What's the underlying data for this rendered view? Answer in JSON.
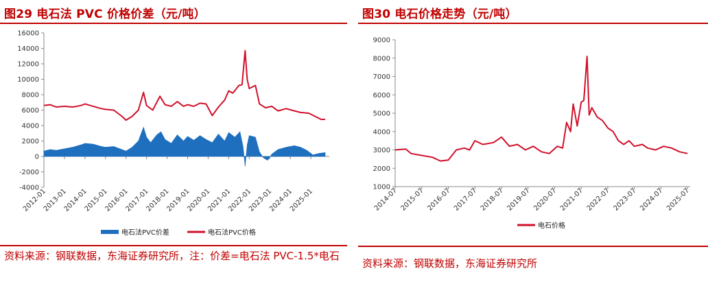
{
  "colors": {
    "accent": "#c00000",
    "price_line": "#d0102a",
    "spread_area": "#1f6fbf"
  },
  "left": {
    "title": "图29  电石法 PVC 价格价差（元/吨）",
    "source": "资料来源：钢联数据，东海证券研究所，注：价差=电石法 PVC-1.5*电石",
    "chart_data": {
      "type": "line",
      "title": "",
      "xlabel": "",
      "ylabel": "",
      "ylim": [
        -4000,
        16000
      ],
      "yticks": [
        "16000",
        "14000",
        "12000",
        "10000",
        "8000",
        "6000",
        "4000",
        "2000",
        "0",
        "-2000",
        "-4000"
      ],
      "x_ticks": [
        "2012-01",
        "2013-01",
        "2014-01",
        "2015-01",
        "2016-01",
        "2017-01",
        "2018-01",
        "2019-01",
        "2020-01",
        "2021-01",
        "2022-01",
        "2023-01",
        "2024-01",
        "2025-01"
      ],
      "xlim": [
        2012.0,
        2025.9
      ],
      "legend_position": "bottom",
      "grid": false,
      "series": [
        {
          "name": "电石法PVC价差",
          "kind": "area",
          "points": [
            [
              2012.0,
              700
            ],
            [
              2012.3,
              900
            ],
            [
              2012.6,
              800
            ],
            [
              2013.0,
              1000
            ],
            [
              2013.4,
              1200
            ],
            [
              2013.8,
              1500
            ],
            [
              2014.0,
              1700
            ],
            [
              2014.4,
              1600
            ],
            [
              2014.8,
              1300
            ],
            [
              2015.0,
              1200
            ],
            [
              2015.4,
              1300
            ],
            [
              2015.8,
              900
            ],
            [
              2016.0,
              700
            ],
            [
              2016.3,
              1200
            ],
            [
              2016.6,
              2000
            ],
            [
              2016.85,
              3800
            ],
            [
              2017.0,
              2500
            ],
            [
              2017.2,
              1800
            ],
            [
              2017.5,
              2800
            ],
            [
              2017.7,
              3200
            ],
            [
              2017.9,
              2200
            ],
            [
              2018.2,
              1700
            ],
            [
              2018.5,
              2800
            ],
            [
              2018.8,
              2000
            ],
            [
              2019.0,
              2600
            ],
            [
              2019.3,
              2100
            ],
            [
              2019.6,
              2700
            ],
            [
              2019.9,
              2200
            ],
            [
              2020.2,
              1800
            ],
            [
              2020.5,
              2900
            ],
            [
              2020.8,
              2000
            ],
            [
              2021.0,
              3100
            ],
            [
              2021.3,
              2500
            ],
            [
              2021.55,
              3200
            ],
            [
              2021.7,
              1300
            ],
            [
              2021.8,
              -1300
            ],
            [
              2021.9,
              1500
            ],
            [
              2022.0,
              2700
            ],
            [
              2022.3,
              2500
            ],
            [
              2022.5,
              600
            ],
            [
              2022.7,
              -200
            ],
            [
              2022.9,
              -500
            ],
            [
              2023.1,
              300
            ],
            [
              2023.4,
              900
            ],
            [
              2023.8,
              1200
            ],
            [
              2024.2,
              1400
            ],
            [
              2024.5,
              1200
            ],
            [
              2024.8,
              800
            ],
            [
              2025.1,
              200
            ],
            [
              2025.4,
              400
            ],
            [
              2025.7,
              500
            ]
          ]
        },
        {
          "name": "电石法PVC价格",
          "kind": "line",
          "points": [
            [
              2012.0,
              6600
            ],
            [
              2012.3,
              6700
            ],
            [
              2012.6,
              6400
            ],
            [
              2013.0,
              6500
            ],
            [
              2013.4,
              6400
            ],
            [
              2013.8,
              6600
            ],
            [
              2014.0,
              6800
            ],
            [
              2014.4,
              6500
            ],
            [
              2014.8,
              6200
            ],
            [
              2015.0,
              6100
            ],
            [
              2015.4,
              6000
            ],
            [
              2015.8,
              5200
            ],
            [
              2016.0,
              4700
            ],
            [
              2016.3,
              5200
            ],
            [
              2016.6,
              6000
            ],
            [
              2016.85,
              8300
            ],
            [
              2017.0,
              6600
            ],
            [
              2017.3,
              6000
            ],
            [
              2017.65,
              7800
            ],
            [
              2017.9,
              6700
            ],
            [
              2018.2,
              6500
            ],
            [
              2018.5,
              7100
            ],
            [
              2018.8,
              6500
            ],
            [
              2019.0,
              6700
            ],
            [
              2019.3,
              6500
            ],
            [
              2019.6,
              6900
            ],
            [
              2019.9,
              6800
            ],
            [
              2020.2,
              5300
            ],
            [
              2020.5,
              6400
            ],
            [
              2020.8,
              7300
            ],
            [
              2021.0,
              8500
            ],
            [
              2021.2,
              8200
            ],
            [
              2021.5,
              9200
            ],
            [
              2021.65,
              9300
            ],
            [
              2021.8,
              13700
            ],
            [
              2021.9,
              10000
            ],
            [
              2022.0,
              8800
            ],
            [
              2022.3,
              9200
            ],
            [
              2022.5,
              6800
            ],
            [
              2022.8,
              6300
            ],
            [
              2023.1,
              6500
            ],
            [
              2023.4,
              5900
            ],
            [
              2023.8,
              6200
            ],
            [
              2024.2,
              5900
            ],
            [
              2024.5,
              5700
            ],
            [
              2024.9,
              5600
            ],
            [
              2025.2,
              5200
            ],
            [
              2025.5,
              4800
            ],
            [
              2025.7,
              4800
            ]
          ]
        }
      ]
    }
  },
  "right": {
    "title": "图30  电石价格走势（元/吨）",
    "source": "资料来源：钢联数据，东海证券研究所",
    "chart_data": {
      "type": "line",
      "title": "",
      "xlabel": "",
      "ylabel": "",
      "ylim": [
        1000,
        9000
      ],
      "yticks": [
        "9000",
        "8000",
        "7000",
        "6000",
        "5000",
        "4000",
        "3000",
        "2000",
        "1000"
      ],
      "x_ticks": [
        "2014-07",
        "2015-07",
        "2016-07",
        "2017-07",
        "2018-07",
        "2019-07",
        "2020-07",
        "2021-07",
        "2022-07",
        "2023-07",
        "2024-07",
        "2025-07"
      ],
      "xlim": [
        2014.5,
        2025.6
      ],
      "legend_position": "bottom",
      "grid": false,
      "series": [
        {
          "name": "电石价格",
          "kind": "line",
          "points": [
            [
              2014.5,
              3000
            ],
            [
              2014.9,
              3050
            ],
            [
              2015.1,
              2800
            ],
            [
              2015.5,
              2700
            ],
            [
              2015.9,
              2600
            ],
            [
              2016.2,
              2400
            ],
            [
              2016.5,
              2450
            ],
            [
              2016.8,
              3000
            ],
            [
              2017.1,
              3100
            ],
            [
              2017.3,
              3000
            ],
            [
              2017.5,
              3500
            ],
            [
              2017.8,
              3300
            ],
            [
              2018.2,
              3400
            ],
            [
              2018.5,
              3700
            ],
            [
              2018.8,
              3200
            ],
            [
              2019.1,
              3300
            ],
            [
              2019.4,
              3000
            ],
            [
              2019.7,
              3200
            ],
            [
              2020.0,
              2900
            ],
            [
              2020.3,
              2800
            ],
            [
              2020.6,
              3200
            ],
            [
              2020.8,
              3100
            ],
            [
              2020.95,
              4500
            ],
            [
              2021.1,
              4000
            ],
            [
              2021.2,
              5500
            ],
            [
              2021.35,
              4300
            ],
            [
              2021.5,
              5600
            ],
            [
              2021.6,
              5700
            ],
            [
              2021.72,
              8100
            ],
            [
              2021.8,
              4900
            ],
            [
              2021.9,
              5300
            ],
            [
              2022.1,
              4800
            ],
            [
              2022.3,
              4600
            ],
            [
              2022.5,
              4200
            ],
            [
              2022.7,
              4000
            ],
            [
              2022.9,
              3500
            ],
            [
              2023.1,
              3300
            ],
            [
              2023.3,
              3500
            ],
            [
              2023.5,
              3200
            ],
            [
              2023.8,
              3300
            ],
            [
              2024.0,
              3100
            ],
            [
              2024.3,
              3000
            ],
            [
              2024.6,
              3200
            ],
            [
              2024.9,
              3100
            ],
            [
              2025.2,
              2900
            ],
            [
              2025.5,
              2800
            ]
          ]
        }
      ]
    }
  }
}
